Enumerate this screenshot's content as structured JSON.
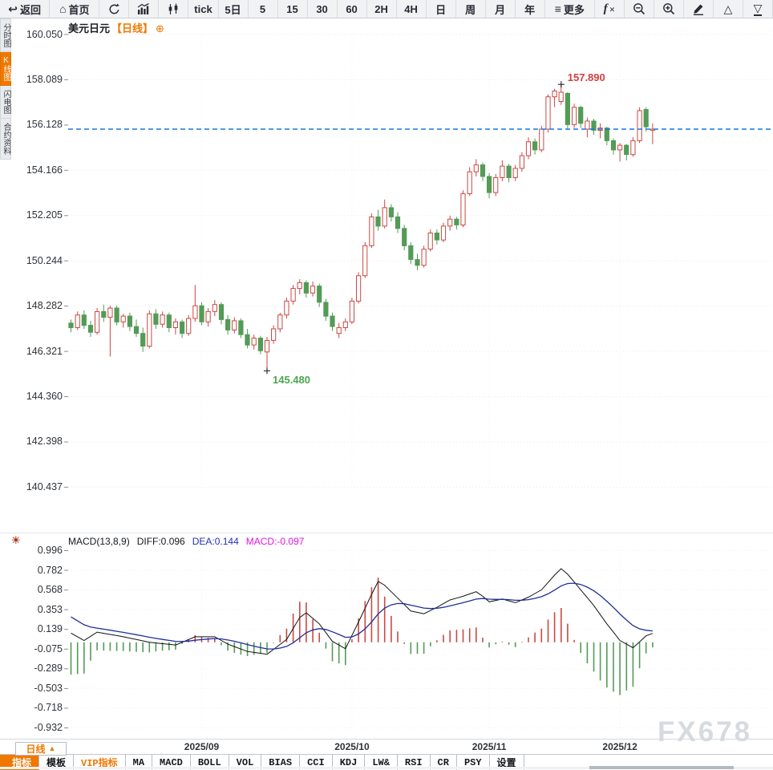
{
  "toolbar": {
    "items": [
      {
        "name": "back-button",
        "icon": "↩",
        "label": "返回",
        "wide": true
      },
      {
        "name": "home-button",
        "icon": "⌂",
        "label": "首页",
        "wide": true
      },
      {
        "name": "refresh-button",
        "svg": "refresh"
      },
      {
        "name": "trend-chart-button",
        "svg": "bars"
      },
      {
        "name": "candle-chart-button",
        "svg": "candles"
      },
      {
        "name": "period-tick",
        "label": "tick"
      },
      {
        "name": "period-5d",
        "label": "5日"
      },
      {
        "name": "period-5",
        "label": "5"
      },
      {
        "name": "period-15",
        "label": "15"
      },
      {
        "name": "period-30",
        "label": "30"
      },
      {
        "name": "period-60",
        "label": "60"
      },
      {
        "name": "period-2h",
        "label": "2H"
      },
      {
        "name": "period-4h",
        "label": "4H"
      },
      {
        "name": "period-day",
        "label": "日"
      },
      {
        "name": "period-week",
        "label": "周"
      },
      {
        "name": "period-month",
        "label": "月"
      },
      {
        "name": "period-year",
        "label": "年"
      },
      {
        "name": "more-button",
        "icon": "≡",
        "label": "更多",
        "wide": true
      },
      {
        "name": "fx-indicator-button",
        "fx": "f",
        "suffix": "✕"
      },
      {
        "name": "zoom-out-button",
        "svg": "zoom-out"
      },
      {
        "name": "zoom-in-button",
        "svg": "zoom-in"
      },
      {
        "name": "draw-button",
        "svg": "pencil"
      },
      {
        "name": "triangle-up-button",
        "icon": "△"
      },
      {
        "name": "triangle-down-button",
        "icon": "▽",
        "underline": true
      }
    ]
  },
  "sidebar": {
    "items": [
      {
        "label": "分时图",
        "active": false
      },
      {
        "label": "K线图",
        "active": true
      },
      {
        "label": "闪电图",
        "active": false
      },
      {
        "label": "合约资料",
        "active": false
      }
    ]
  },
  "header": {
    "symbol": "美元日元",
    "period": "【日线】",
    "add": "⊕"
  },
  "macd_header": {
    "title": "MACD(13,8,9)",
    "diff": "DIFF:0.096",
    "dea": "DEA:0.144",
    "macd": "MACD:-0.097"
  },
  "bottom": {
    "period_button": {
      "label": "日线",
      "arrow": "▲"
    },
    "tabs": [
      {
        "label": "指标",
        "style": "active"
      },
      {
        "label": "模板",
        "style": ""
      },
      {
        "label": "VIP指标",
        "style": "vip"
      },
      {
        "label": "MA",
        "style": ""
      },
      {
        "label": "MACD",
        "style": ""
      },
      {
        "label": "BOLL",
        "style": ""
      },
      {
        "label": "VOL",
        "style": ""
      },
      {
        "label": "BIAS",
        "style": ""
      },
      {
        "label": "CCI",
        "style": ""
      },
      {
        "label": "KDJ",
        "style": ""
      },
      {
        "label": "LW&",
        "style": ""
      },
      {
        "label": "RSI",
        "style": ""
      },
      {
        "label": "CR",
        "style": ""
      },
      {
        "label": "PSY",
        "style": ""
      },
      {
        "label": "设置",
        "style": ""
      }
    ]
  },
  "watermark": "FX678",
  "chart_data": {
    "type": "candlestick+macd",
    "symbol": "美元日元",
    "period": "日线",
    "y_axis_labels": [
      "160.050",
      "158.089",
      "156.128",
      "154.166",
      "152.205",
      "150.244",
      "148.282",
      "146.321",
      "144.360",
      "142.398",
      "140.437"
    ],
    "x_axis_labels": [
      {
        "label": "2025/09",
        "index": 20
      },
      {
        "label": "2025/10",
        "index": 43
      },
      {
        "label": "2025/11",
        "index": 64
      },
      {
        "label": "2025/12",
        "index": 84
      }
    ],
    "last_price": 155.95,
    "annotations": {
      "high": {
        "index": 75,
        "price": 157.89,
        "label": "157.890"
      },
      "low": {
        "index": 30,
        "price": 145.48,
        "label": "145.480"
      }
    },
    "colors": {
      "up": "#cb4842",
      "down": "#539b57",
      "last_price_line": "#1878d8",
      "annotation_high": "#d43d3d",
      "annotation_low": "#4aa54e",
      "marker": "#222222"
    },
    "candles": [
      [
        147.55,
        147.7,
        147.15,
        147.35
      ],
      [
        147.35,
        148.05,
        147.25,
        147.9
      ],
      [
        147.9,
        148.1,
        147.3,
        147.45
      ],
      [
        147.45,
        147.65,
        146.95,
        147.15
      ],
      [
        147.15,
        148.2,
        147.05,
        148.05
      ],
      [
        148.05,
        148.35,
        147.6,
        147.8
      ],
      [
        147.8,
        148.3,
        146.1,
        148.2
      ],
      [
        148.2,
        148.3,
        147.45,
        147.6
      ],
      [
        147.6,
        147.95,
        147.35,
        147.85
      ],
      [
        147.85,
        148.0,
        147.2,
        147.4
      ],
      [
        147.4,
        147.7,
        146.95,
        147.1
      ],
      [
        147.1,
        147.35,
        146.3,
        146.55
      ],
      [
        146.55,
        148.1,
        146.45,
        147.95
      ],
      [
        147.95,
        148.15,
        147.3,
        147.5
      ],
      [
        147.5,
        148.05,
        147.35,
        147.9
      ],
      [
        147.9,
        148.0,
        147.15,
        147.35
      ],
      [
        147.35,
        147.75,
        147.05,
        147.6
      ],
      [
        147.6,
        147.7,
        146.9,
        147.1
      ],
      [
        147.1,
        147.9,
        147.0,
        147.75
      ],
      [
        147.75,
        149.2,
        147.6,
        148.3
      ],
      [
        148.3,
        148.45,
        147.45,
        147.6
      ],
      [
        147.6,
        148.2,
        147.4,
        148.05
      ],
      [
        148.05,
        148.55,
        147.85,
        148.35
      ],
      [
        148.35,
        148.45,
        147.5,
        147.7
      ],
      [
        147.7,
        147.9,
        147.05,
        147.25
      ],
      [
        147.25,
        147.8,
        147.1,
        147.65
      ],
      [
        147.65,
        147.75,
        146.9,
        147.05
      ],
      [
        147.05,
        147.3,
        146.45,
        146.6
      ],
      [
        146.6,
        147.05,
        146.4,
        146.9
      ],
      [
        146.9,
        147.0,
        146.2,
        146.35
      ],
      [
        146.3,
        146.95,
        145.48,
        146.8
      ],
      [
        146.8,
        147.45,
        146.65,
        147.3
      ],
      [
        147.3,
        148.0,
        147.15,
        147.9
      ],
      [
        147.9,
        148.65,
        147.75,
        148.5
      ],
      [
        148.5,
        149.2,
        148.35,
        149.05
      ],
      [
        149.05,
        149.45,
        148.8,
        149.3
      ],
      [
        149.3,
        149.4,
        148.65,
        148.85
      ],
      [
        148.85,
        149.35,
        148.7,
        149.15
      ],
      [
        149.15,
        149.25,
        148.25,
        148.45
      ],
      [
        148.45,
        148.6,
        147.65,
        147.85
      ],
      [
        147.85,
        148.0,
        147.2,
        147.4
      ],
      [
        147.1,
        147.55,
        146.9,
        147.35
      ],
      [
        147.35,
        147.75,
        147.2,
        147.6
      ],
      [
        147.6,
        148.65,
        147.5,
        148.5
      ],
      [
        148.5,
        149.75,
        148.4,
        149.6
      ],
      [
        149.6,
        151.05,
        149.5,
        150.9
      ],
      [
        150.9,
        152.3,
        150.8,
        152.15
      ],
      [
        152.15,
        152.45,
        151.55,
        151.75
      ],
      [
        151.75,
        152.9,
        151.65,
        152.55
      ],
      [
        152.55,
        152.7,
        151.95,
        152.15
      ],
      [
        152.15,
        152.35,
        151.45,
        151.65
      ],
      [
        151.65,
        151.8,
        150.7,
        150.9
      ],
      [
        150.9,
        151.05,
        150.1,
        150.3
      ],
      [
        150.3,
        150.55,
        149.85,
        150.05
      ],
      [
        150.05,
        150.9,
        149.95,
        150.75
      ],
      [
        150.75,
        151.6,
        150.65,
        151.45
      ],
      [
        151.45,
        151.6,
        150.95,
        151.15
      ],
      [
        151.15,
        151.9,
        151.05,
        151.75
      ],
      [
        151.75,
        152.2,
        151.55,
        152.05
      ],
      [
        152.05,
        152.15,
        151.6,
        151.8
      ],
      [
        151.8,
        153.3,
        151.7,
        153.15
      ],
      [
        153.15,
        154.3,
        153.05,
        154.1
      ],
      [
        154.1,
        154.65,
        153.9,
        154.4
      ],
      [
        154.4,
        154.5,
        153.7,
        153.9
      ],
      [
        153.9,
        154.05,
        152.95,
        153.2
      ],
      [
        153.2,
        154.0,
        153.05,
        153.85
      ],
      [
        153.85,
        154.6,
        153.7,
        154.35
      ],
      [
        154.35,
        154.45,
        153.65,
        153.85
      ],
      [
        153.85,
        154.4,
        153.7,
        154.25
      ],
      [
        154.25,
        154.95,
        154.1,
        154.8
      ],
      [
        154.8,
        155.6,
        154.65,
        155.4
      ],
      [
        155.4,
        155.55,
        154.85,
        155.05
      ],
      [
        155.05,
        156.1,
        154.95,
        155.95
      ],
      [
        155.95,
        157.45,
        155.8,
        157.35
      ],
      [
        157.35,
        157.7,
        156.9,
        157.6
      ],
      [
        157.15,
        157.89,
        157.0,
        157.55
      ],
      [
        157.5,
        157.55,
        155.95,
        156.15
      ],
      [
        156.15,
        157.05,
        156.0,
        156.9
      ],
      [
        156.9,
        156.95,
        156.0,
        156.2
      ],
      [
        155.95,
        156.45,
        155.6,
        156.3
      ],
      [
        156.3,
        156.4,
        155.7,
        155.9
      ],
      [
        155.9,
        156.2,
        155.55,
        156.0
      ],
      [
        156.0,
        156.05,
        155.25,
        155.45
      ],
      [
        155.45,
        155.55,
        154.85,
        155.05
      ],
      [
        155.05,
        155.35,
        154.55,
        155.25
      ],
      [
        155.25,
        155.3,
        154.6,
        154.85
      ],
      [
        154.85,
        155.6,
        154.75,
        155.45
      ],
      [
        155.45,
        156.9,
        155.35,
        156.75
      ],
      [
        156.8,
        156.9,
        155.85,
        156.05
      ],
      [
        155.9,
        156.2,
        155.3,
        155.95
      ]
    ],
    "macd": {
      "params": "13,8,9",
      "axis_labels": [
        "0.996",
        "0.782",
        "0.568",
        "0.353",
        "0.139",
        "-0.075",
        "-0.289",
        "-0.503",
        "-0.718",
        "-0.932"
      ],
      "diff_value": 0.096,
      "dea_value": 0.144,
      "macd_value": -0.097,
      "dea_seed": 0.32,
      "diff_anchors": [
        [
          0,
          0.1
        ],
        [
          2,
          0.02
        ],
        [
          4,
          0.11
        ],
        [
          8,
          0.06
        ],
        [
          12,
          0.0
        ],
        [
          16,
          -0.03
        ],
        [
          19,
          0.06
        ],
        [
          22,
          0.06
        ],
        [
          24,
          -0.02
        ],
        [
          27,
          -0.1
        ],
        [
          30,
          -0.13
        ],
        [
          33,
          0.03
        ],
        [
          35,
          0.27
        ],
        [
          36,
          0.32
        ],
        [
          38,
          0.2
        ],
        [
          40,
          0.01
        ],
        [
          42,
          -0.07
        ],
        [
          44,
          0.22
        ],
        [
          46,
          0.52
        ],
        [
          47,
          0.66
        ],
        [
          48,
          0.62
        ],
        [
          50,
          0.48
        ],
        [
          52,
          0.34
        ],
        [
          54,
          0.31
        ],
        [
          56,
          0.38
        ],
        [
          58,
          0.46
        ],
        [
          60,
          0.5
        ],
        [
          62,
          0.55
        ],
        [
          63,
          0.5
        ],
        [
          64,
          0.44
        ],
        [
          66,
          0.47
        ],
        [
          68,
          0.43
        ],
        [
          70,
          0.49
        ],
        [
          72,
          0.57
        ],
        [
          74,
          0.73
        ],
        [
          75,
          0.8
        ],
        [
          76,
          0.74
        ],
        [
          78,
          0.57
        ],
        [
          80,
          0.4
        ],
        [
          82,
          0.2
        ],
        [
          84,
          0.02
        ],
        [
          86,
          -0.06
        ],
        [
          88,
          0.07
        ],
        [
          89,
          0.096
        ]
      ],
      "colors": {
        "diff": "#111111",
        "dea": "#1f2f9e"
      }
    }
  }
}
